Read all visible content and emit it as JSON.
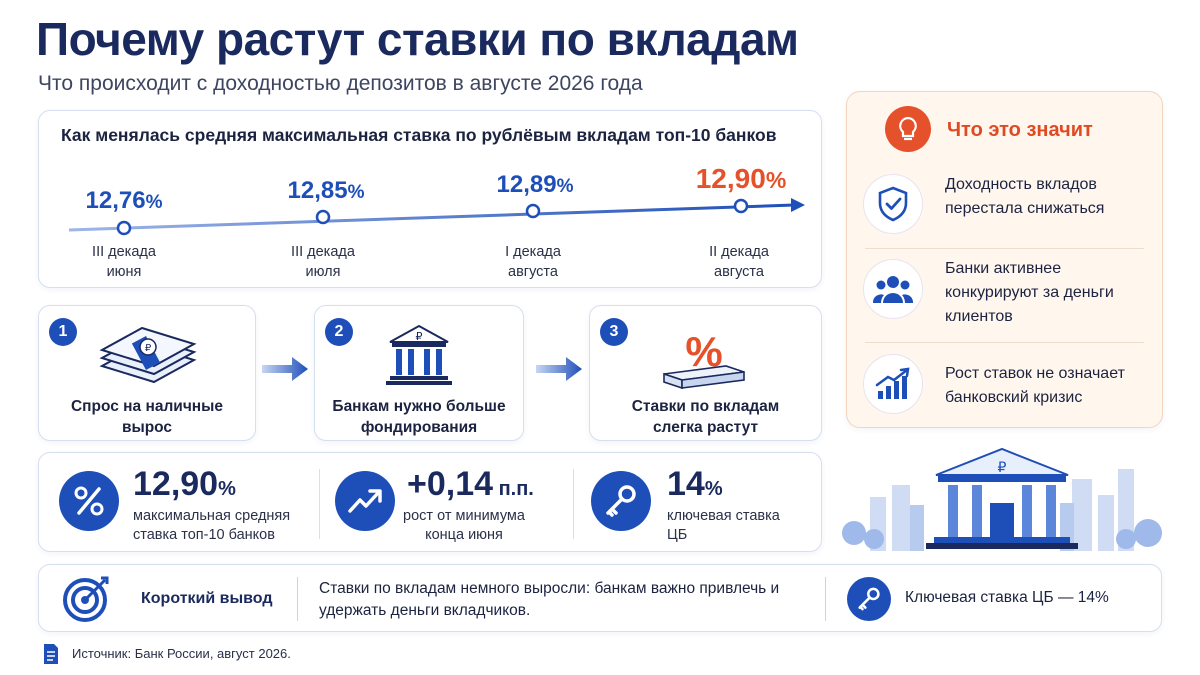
{
  "header": {
    "title": "Почему растут ставки по вкладам",
    "subtitle": "Что происходит с доходностью депозитов в августе 2026 года"
  },
  "timeline": {
    "title": "Как менялась средняя максимальная ставка по рублёвым вкладам топ-10 банков",
    "points": [
      {
        "value": "12,76",
        "unit": "%",
        "label_line1": "III декада",
        "label_line2": "июня"
      },
      {
        "value": "12,85",
        "unit": "%",
        "label_line1": "III декада",
        "label_line2": "июля"
      },
      {
        "value": "12,89",
        "unit": "%",
        "label_line1": "I декада",
        "label_line2": "августа"
      },
      {
        "value": "12,90",
        "unit": "%",
        "label_line1": "II декада",
        "label_line2": "августа"
      }
    ]
  },
  "steps": [
    {
      "number": "1",
      "icon": "cash-stack-icon",
      "text_line1": "Спрос на наличные",
      "text_line2": "вырос"
    },
    {
      "number": "2",
      "icon": "bank-ruble-icon",
      "text_line1": "Банкам нужно больше",
      "text_line2": "фондирования"
    },
    {
      "number": "3",
      "icon": "percent-icon",
      "text_line1": "Ставки по вкладам",
      "text_line2": "слегка растут"
    }
  ],
  "stats": [
    {
      "icon": "percent-icon",
      "value": "12,90",
      "unit": "%",
      "desc_line1": "максимальная средняя",
      "desc_line2": "ставка топ-10 банков"
    },
    {
      "icon": "trend-up-icon",
      "value": "+0,14",
      "unit": " п.п.",
      "desc_line1": "рост от минимума",
      "desc_line2": "конца июня"
    },
    {
      "icon": "key-icon",
      "value": "14",
      "unit": "%",
      "desc_line1": "ключевая ставка",
      "desc_line2": "ЦБ"
    }
  ],
  "side_panel": {
    "title": "Что это значит",
    "items": [
      {
        "icon": "shield-check-icon",
        "line1": "Доходность вкладов",
        "line2": "перестала снижаться",
        "line3": ""
      },
      {
        "icon": "people-icon",
        "line1": "Банки активнее",
        "line2": "конкурируют за деньги",
        "line3": "клиентов"
      },
      {
        "icon": "growth-chart-icon",
        "line1": "Рост ставок не означает",
        "line2": "банковский кризис",
        "line3": ""
      }
    ]
  },
  "conclusion": {
    "title": "Короткий вывод",
    "text": "Ставки по вкладам немного выросли: банкам важно привлечь и удержать деньги вкладчиков.",
    "key_rate": "Ключевая ставка ЦБ — 14%"
  },
  "source": "Источник: Банк России, август 2026.",
  "colors": {
    "primary": "#1e4fb8",
    "accent": "#e5512a",
    "dark": "#1a2a5e",
    "panel": "#fff6ee"
  }
}
